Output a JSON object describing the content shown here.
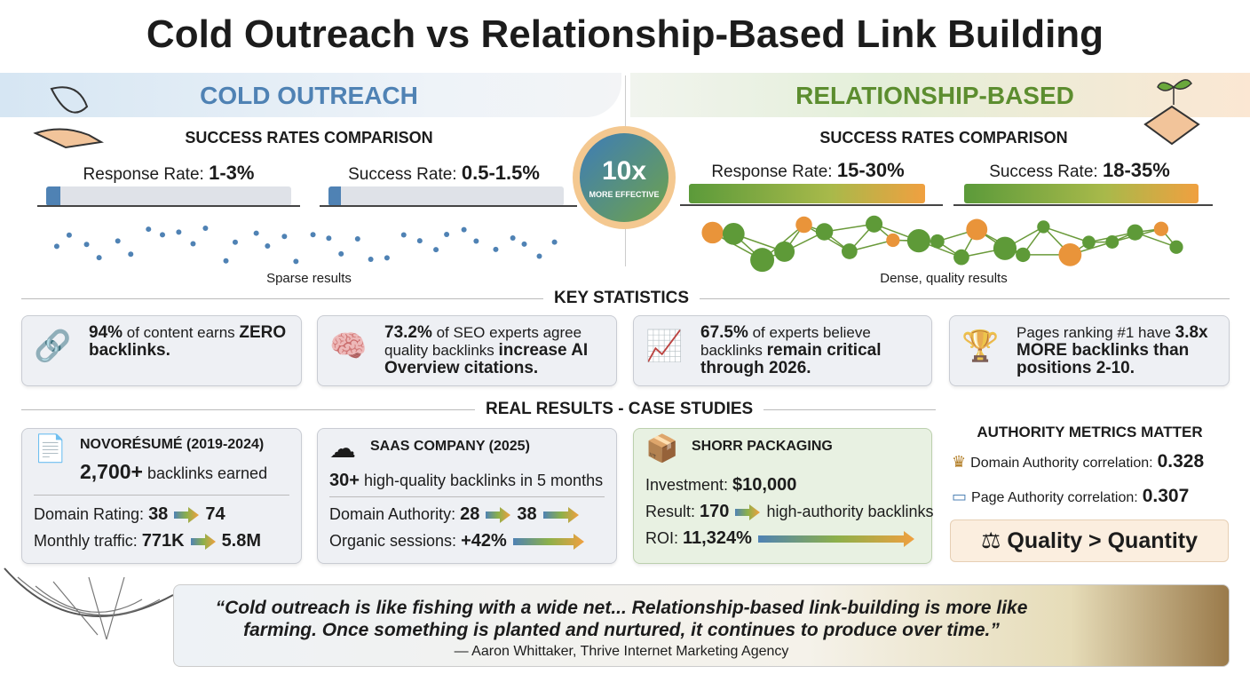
{
  "title": "Cold Outreach vs Relationship-Based Link Building",
  "badge": {
    "big": "10x",
    "small": "MORE EFFECTIVE"
  },
  "panels": [
    {
      "heading": "COLD OUTREACH",
      "subheading": "SUCCESS RATES COMPARISON",
      "rates": [
        {
          "label": "Response Rate:",
          "value": "1-3%"
        },
        {
          "label": "Success Rate:",
          "value": "0.5-1.5%"
        }
      ],
      "caption": "Sparse results"
    },
    {
      "heading": "RELATIONSHIP-BASED",
      "subheading": "SUCCESS RATES COMPARISON",
      "rates": [
        {
          "label": "Response Rate:",
          "value": "15-30%"
        },
        {
          "label": "Success Rate:",
          "value": "18-35%"
        }
      ],
      "caption": "Dense, quality results"
    }
  ],
  "key_statistics": {
    "heading": "KEY STATISTICS",
    "cards": [
      [
        {
          "text": "94%",
          "bold": true
        },
        {
          "text": " of content earns ",
          "bold": false
        },
        {
          "text": "ZERO backlinks.",
          "bold": true
        }
      ],
      [
        {
          "text": "73.2%",
          "bold": true
        },
        {
          "text": " of SEO experts agree quality backlinks ",
          "bold": false
        },
        {
          "text": "increase AI Overview citations.",
          "bold": true
        }
      ],
      [
        {
          "text": "67.5%",
          "bold": true
        },
        {
          "text": " of experts believe backlinks ",
          "bold": false
        },
        {
          "text": "remain critical through 2026.",
          "bold": true
        }
      ],
      [
        {
          "text": "Pages ranking #1 have ",
          "bold": false
        },
        {
          "text": "3.8x MORE backlinks",
          "bold": true
        },
        {
          "text": " than positions 2-10.",
          "bold": true
        }
      ]
    ]
  },
  "case_studies": {
    "heading": "REAL RESULTS - CASE STUDIES",
    "cards": [
      {
        "title": "NOVORÉSUMÉ (2019-2024)",
        "lines": [
          [
            {
              "text": "2,700+",
              "bold": true
            },
            {
              "text": " backlinks earned",
              "bold": false
            }
          ],
          [
            {
              "text": "Domain Rating: ",
              "bold": false
            },
            {
              "text": "38",
              "bold": true
            },
            {
              "text": "74",
              "bold": true
            }
          ],
          [
            {
              "text": "Monthly traffic: ",
              "bold": false
            },
            {
              "text": "771K",
              "bold": true
            },
            {
              "text": "5.8M",
              "bold": true
            }
          ]
        ]
      },
      {
        "title": "SAAS COMPANY (2025)",
        "lines": [
          [
            {
              "text": "30+",
              "bold": true
            },
            {
              "text": " high-quality backlinks in 5 months",
              "bold": false
            }
          ],
          [
            {
              "text": "Domain Authority: ",
              "bold": false
            },
            {
              "text": "28",
              "bold": true
            },
            {
              "text": "38",
              "bold": true
            }
          ],
          [
            {
              "text": "Organic sessions: ",
              "bold": false
            },
            {
              "text": "+42%",
              "bold": true
            }
          ]
        ]
      },
      {
        "title": "SHORR PACKAGING",
        "lines": [
          [
            {
              "text": "Investment: ",
              "bold": false
            },
            {
              "text": "$10,000",
              "bold": true
            }
          ],
          [
            {
              "text": "Result: ",
              "bold": false
            },
            {
              "text": "170",
              "bold": true
            },
            {
              "text": " high-authority backlinks",
              "bold": false
            }
          ],
          [
            {
              "text": "ROI: ",
              "bold": false
            },
            {
              "text": "11,324%",
              "bold": true
            }
          ]
        ]
      }
    ]
  },
  "authority": {
    "heading": "AUTHORITY METRICS MATTER",
    "items": [
      {
        "label": "Domain Authority correlation:",
        "value": "0.328"
      },
      {
        "label": "Page Authority correlation:",
        "value": "0.307"
      }
    ],
    "callout": "Quality > Quantity"
  },
  "quote": {
    "text": "“Cold outreach is like fishing with a wide net... Relationship-based link-building is more like farming. Once something is planted and nurtured, it continues to produce over time.”",
    "attribution": "— Aaron Whittaker, Thrive Internet Marketing Agency"
  }
}
